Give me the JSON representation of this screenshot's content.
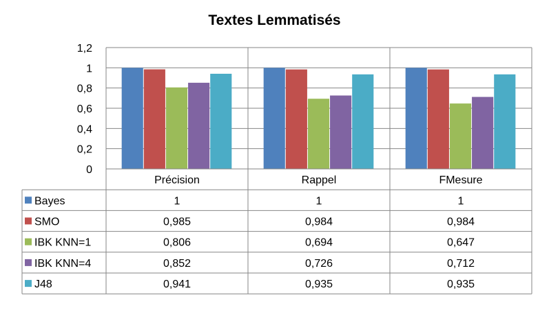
{
  "chart_data": {
    "type": "bar",
    "title": "Textes Lemmatisés",
    "categories": [
      "Précision",
      "Rappel",
      "FMesure"
    ],
    "series": [
      {
        "name": "Bayes",
        "color": "#4F81BD",
        "values": [
          1,
          1,
          1
        ],
        "labels": [
          "1",
          "1",
          "1"
        ]
      },
      {
        "name": "SMO",
        "color": "#C0504D",
        "values": [
          0.985,
          0.984,
          0.984
        ],
        "labels": [
          "0,985",
          "0,984",
          "0,984"
        ]
      },
      {
        "name": "IBK KNN=1",
        "color": "#9BBB59",
        "values": [
          0.806,
          0.694,
          0.647
        ],
        "labels": [
          "0,806",
          "0,694",
          "0,647"
        ]
      },
      {
        "name": "IBK KNN=4",
        "color": "#8064A2",
        "values": [
          0.852,
          0.726,
          0.712
        ],
        "labels": [
          "0,852",
          "0,726",
          "0,712"
        ]
      },
      {
        "name": "J48",
        "color": "#4BACC6",
        "values": [
          0.941,
          0.935,
          0.935
        ],
        "labels": [
          "0,941",
          "0,935",
          "0,935"
        ]
      }
    ],
    "ylim": [
      0,
      1.2
    ],
    "yticks": [
      0,
      0.2,
      0.4,
      0.6,
      0.8,
      1,
      1.2
    ],
    "ytick_labels": [
      "0",
      "0,2",
      "0,4",
      "0,6",
      "0,8",
      "1",
      "1,2"
    ],
    "grid": true,
    "legend": "data-table"
  }
}
